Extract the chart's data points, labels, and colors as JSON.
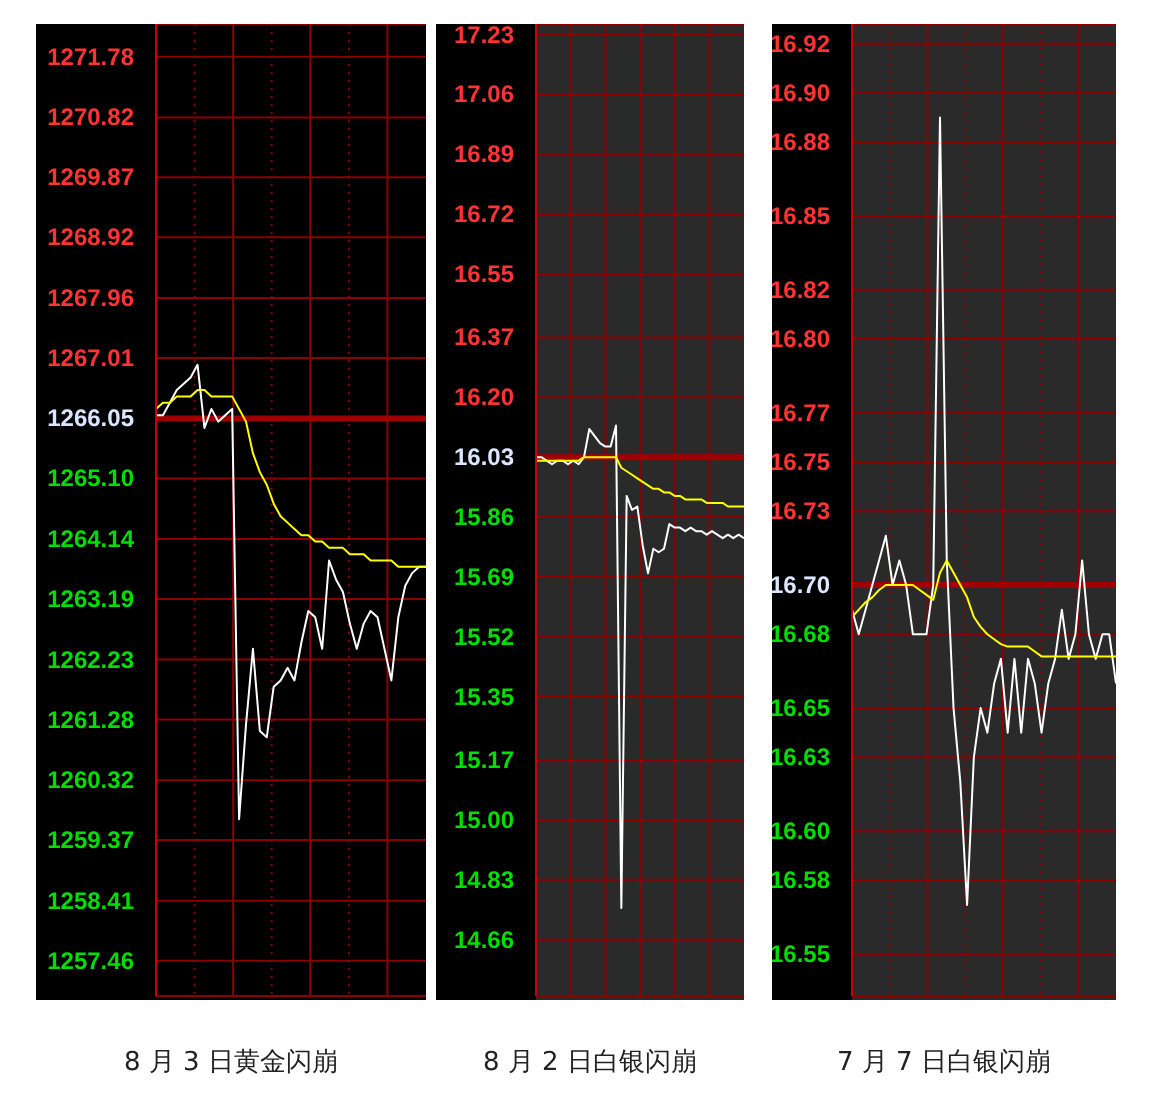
{
  "chart_data": [
    {
      "type": "line",
      "title": "8 月 3 日黄金闪崩",
      "categories": [
        null,
        null,
        null,
        null,
        null,
        null,
        null,
        null,
        null,
        null,
        null,
        null,
        null,
        null,
        null,
        null,
        null,
        null,
        null,
        null,
        null,
        null,
        null,
        null,
        null,
        null,
        null,
        null,
        null,
        null,
        null,
        null,
        null,
        null,
        null,
        null,
        null,
        null,
        null,
        null
      ],
      "series": [
        {
          "color": "#ffffff",
          "values": [
            1266.1,
            1266.1,
            1266.3,
            1266.5,
            1266.6,
            1266.7,
            1266.9,
            1265.9,
            1266.2,
            1266.0,
            1266.1,
            1266.2,
            1259.7,
            1261.2,
            1262.4,
            1261.1,
            1261.0,
            1261.8,
            1261.9,
            1262.1,
            1261.9,
            1262.5,
            1263.0,
            1262.9,
            1262.4,
            1263.8,
            1263.5,
            1263.3,
            1262.8,
            1262.4,
            1262.8,
            1263.0,
            1262.9,
            1262.4,
            1261.9,
            1262.9,
            1263.4,
            1263.6,
            1263.7,
            1263.7
          ]
        },
        {
          "color": "#ffff00",
          "values": [
            1266.2,
            1266.3,
            1266.3,
            1266.4,
            1266.4,
            1266.4,
            1266.5,
            1266.5,
            1266.4,
            1266.4,
            1266.4,
            1266.4,
            1266.2,
            1266.0,
            1265.5,
            1265.2,
            1265.0,
            1264.7,
            1264.5,
            1264.4,
            1264.3,
            1264.2,
            1264.2,
            1264.1,
            1264.1,
            1264.0,
            1264.0,
            1264.0,
            1263.9,
            1263.9,
            1263.9,
            1263.8,
            1263.8,
            1263.8,
            1263.8,
            1263.7,
            1263.7,
            1263.7,
            1263.7,
            1263.7
          ]
        }
      ],
      "ylim": [
        1256.9,
        1272.3
      ],
      "yticks": [
        1271.78,
        1270.82,
        1269.87,
        1268.92,
        1267.96,
        1267.01,
        1266.05,
        {
          "value": 1265.1,
          "label": "1265.10"
        },
        1264.14,
        1263.19,
        1262.23,
        1261.28,
        1260.32,
        1259.37,
        1258.41,
        1257.46
      ],
      "ref_lines": [
        {
          "axis": "y",
          "value": 1266.05,
          "color": "#a00000"
        }
      ],
      "grid": true,
      "tick_labels": "y"
    },
    {
      "type": "line",
      "title": "8 月 2 日白银闪崩",
      "categories": [
        null,
        null,
        null,
        null,
        null,
        null,
        null,
        null,
        null,
        null,
        null,
        null,
        null,
        null,
        null,
        null,
        null,
        null,
        null,
        null,
        null,
        null,
        null,
        null,
        null,
        null,
        null,
        null,
        null,
        null,
        null,
        null,
        null,
        null,
        null,
        null,
        null,
        null,
        null,
        null
      ],
      "series": [
        {
          "color": "#ffffff",
          "values": [
            16.03,
            16.03,
            16.02,
            16.01,
            16.02,
            16.02,
            16.01,
            16.02,
            16.01,
            16.03,
            16.11,
            16.09,
            16.07,
            16.06,
            16.06,
            16.12,
            14.75,
            15.92,
            15.88,
            15.89,
            15.78,
            15.7,
            15.77,
            15.76,
            15.77,
            15.84,
            15.83,
            15.83,
            15.82,
            15.83,
            15.82,
            15.82,
            15.81,
            15.82,
            15.81,
            15.8,
            15.81,
            15.8,
            15.81,
            15.8
          ]
        },
        {
          "color": "#ffff00",
          "values": [
            16.02,
            16.02,
            16.02,
            16.02,
            16.02,
            16.02,
            16.02,
            16.02,
            16.02,
            16.03,
            16.03,
            16.03,
            16.03,
            16.03,
            16.03,
            16.03,
            16.0,
            15.99,
            15.98,
            15.97,
            15.96,
            15.95,
            15.94,
            15.94,
            15.93,
            15.93,
            15.92,
            15.92,
            15.91,
            15.91,
            15.91,
            15.91,
            15.9,
            15.9,
            15.9,
            15.9,
            15.89,
            15.89,
            15.89,
            15.89
          ]
        }
      ],
      "ylim": [
        14.5,
        17.26
      ],
      "yticks": [
        17.23,
        17.06,
        16.89,
        16.72,
        16.55,
        16.37,
        {
          "value": 16.2,
          "label": "16.20"
        },
        16.03,
        15.86,
        15.69,
        15.52,
        15.35,
        15.17,
        {
          "value": 15,
          "label": "15.00"
        },
        14.83,
        14.66
      ],
      "ref_lines": [
        {
          "axis": "y",
          "value": 16.03,
          "color": "#a00000"
        }
      ],
      "grid": true,
      "tick_labels": "y"
    },
    {
      "type": "line",
      "title": "7 月 7 日白银闪崩",
      "categories": [
        null,
        null,
        null,
        null,
        null,
        null,
        null,
        null,
        null,
        null,
        null,
        null,
        null,
        null,
        null,
        null,
        null,
        null,
        null,
        null,
        null,
        null,
        null,
        null,
        null,
        null,
        null,
        null,
        null,
        null,
        null,
        null,
        null,
        null,
        null,
        null,
        null,
        null,
        null,
        null
      ],
      "series": [
        {
          "color": "#ffffff",
          "values": [
            16.69,
            16.68,
            16.69,
            16.7,
            16.71,
            16.72,
            16.7,
            16.71,
            16.7,
            16.68,
            16.68,
            16.68,
            16.7,
            16.89,
            16.71,
            16.65,
            16.62,
            16.57,
            16.63,
            16.65,
            16.64,
            16.66,
            16.67,
            16.64,
            16.67,
            16.64,
            16.67,
            16.66,
            16.64,
            16.66,
            16.67,
            16.69,
            16.67,
            16.68,
            16.71,
            16.68,
            16.67,
            16.68,
            16.68,
            16.66
          ]
        },
        {
          "color": "#ffff00",
          "values": [
            16.687,
            16.69,
            16.693,
            16.695,
            16.698,
            16.7,
            16.7,
            16.7,
            16.7,
            16.7,
            16.698,
            16.696,
            16.694,
            16.705,
            16.71,
            16.705,
            16.7,
            16.695,
            16.687,
            16.683,
            16.68,
            16.678,
            16.676,
            16.675,
            16.675,
            16.675,
            16.675,
            16.673,
            16.671,
            16.671,
            16.671,
            16.671,
            16.671,
            16.671,
            16.671,
            16.671,
            16.671,
            16.671,
            16.671,
            16.671
          ]
        }
      ],
      "ylim": [
        16.533,
        16.928
      ],
      "yticks": [
        16.92,
        {
          "value": 16.9,
          "label": "16.90"
        },
        16.88,
        16.85,
        16.82,
        {
          "value": 16.8,
          "label": "16.80"
        },
        16.77,
        16.75,
        16.73,
        {
          "value": 16.7,
          "label": "16.70"
        },
        16.68,
        16.65,
        16.63,
        {
          "value": 16.6,
          "label": "16.60"
        },
        16.58,
        16.55
      ],
      "ref_lines": [
        {
          "axis": "y",
          "value": 16.7,
          "color": "#a00000"
        }
      ],
      "grid": true,
      "tick_labels": "y"
    }
  ]
}
